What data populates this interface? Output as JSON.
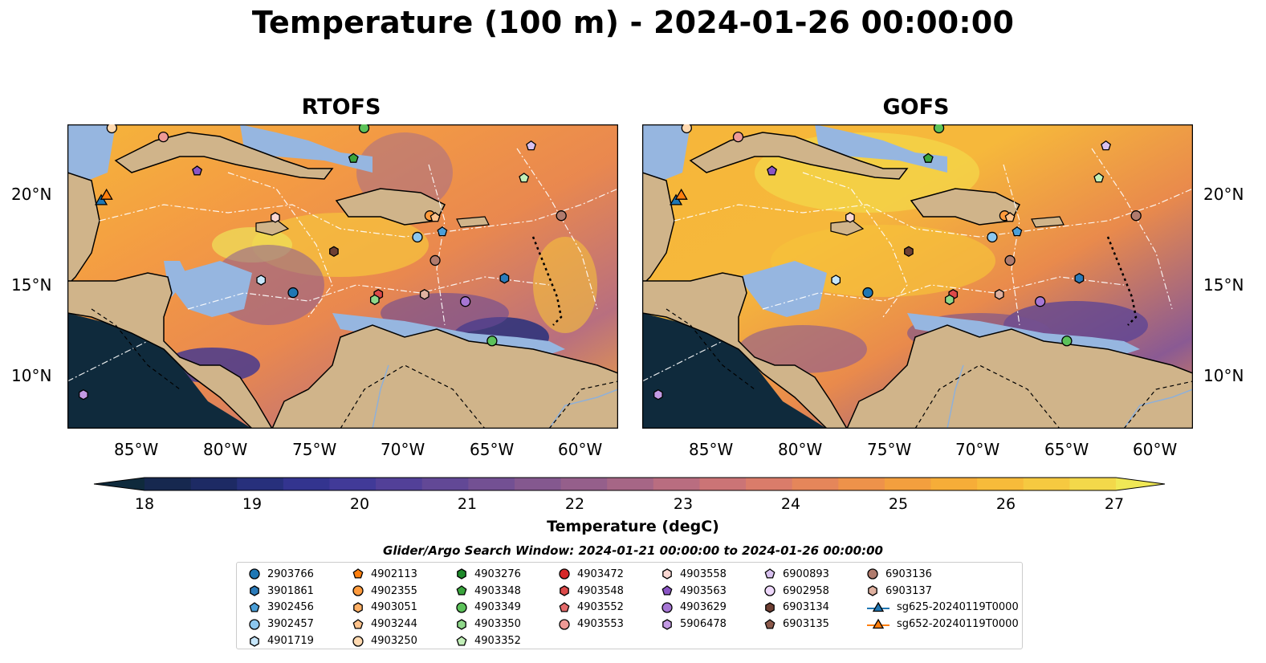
{
  "title": "Temperature (100 m) - 2024-01-26 00:00:00",
  "panels": [
    {
      "title": "RTOFS"
    },
    {
      "title": "GOFS"
    }
  ],
  "axes": {
    "x_ticks": [
      "85°W",
      "80°W",
      "75°W",
      "70°W",
      "65°W",
      "60°W"
    ],
    "y_ticks": [
      "20°N",
      "15°N",
      "10°N"
    ]
  },
  "colorbar": {
    "label": "Temperature (degC)",
    "ticks": [
      "18",
      "19",
      "20",
      "21",
      "22",
      "23",
      "24",
      "25",
      "26",
      "27"
    ],
    "range": [
      18,
      27
    ],
    "extend": "both",
    "colors": [
      "#0f2a3c",
      "#16284f",
      "#1d2a64",
      "#27307c",
      "#33348f",
      "#413a98",
      "#524098",
      "#624896",
      "#735093",
      "#84588f",
      "#955f8b",
      "#a66686",
      "#b96d80",
      "#cb7476",
      "#da7c6a",
      "#e5865a",
      "#ee924a",
      "#f39f3e",
      "#f6ad38",
      "#f7bb3a",
      "#f6c940",
      "#f3d84a",
      "#f0e856"
    ]
  },
  "legend": {
    "title": "Glider/Argo Search Window: 2024-01-21 00:00:00 to 2024-01-26 00:00:00",
    "columns": [
      [
        {
          "label": "2903766",
          "marker": "circle",
          "color": "#1f77b4"
        },
        {
          "label": "3901861",
          "marker": "hexagon",
          "color": "#2b7bba"
        },
        {
          "label": "3902456",
          "marker": "pentagon",
          "color": "#4b9fd8"
        },
        {
          "label": "3902457",
          "marker": "circle",
          "color": "#8cc7ef"
        },
        {
          "label": "4901719",
          "marker": "hexagon",
          "color": "#c6e6fb"
        }
      ],
      [
        {
          "label": "4902113",
          "marker": "pentagon",
          "color": "#ff7f0e"
        },
        {
          "label": "4902355",
          "marker": "circle",
          "color": "#ff9b3d"
        },
        {
          "label": "4903051",
          "marker": "hexagon",
          "color": "#ffb065"
        },
        {
          "label": "4903244",
          "marker": "pentagon",
          "color": "#ffc38c"
        },
        {
          "label": "4903250",
          "marker": "circle",
          "color": "#ffd9b0"
        }
      ],
      [
        {
          "label": "4903276",
          "marker": "hexagon",
          "color": "#1e8a2a"
        },
        {
          "label": "4903348",
          "marker": "pentagon",
          "color": "#3aa53d"
        },
        {
          "label": "4903349",
          "marker": "circle",
          "color": "#5cc25a"
        },
        {
          "label": "4903350",
          "marker": "hexagon",
          "color": "#8fd88a"
        },
        {
          "label": "4903352",
          "marker": "pentagon",
          "color": "#c2efb8"
        }
      ],
      [
        {
          "label": "4903472",
          "marker": "circle",
          "color": "#d62728"
        },
        {
          "label": "4903548",
          "marker": "hexagon",
          "color": "#dd4a4a"
        },
        {
          "label": "4903552",
          "marker": "pentagon",
          "color": "#e46b6b"
        },
        {
          "label": "4903553",
          "marker": "circle",
          "color": "#ee9a96"
        }
      ],
      [
        {
          "label": "4903558",
          "marker": "hexagon",
          "color": "#fbd8d3"
        },
        {
          "label": "4903563",
          "marker": "pentagon",
          "color": "#8a55c4"
        },
        {
          "label": "4903629",
          "marker": "circle",
          "color": "#a676d4"
        },
        {
          "label": "5906478",
          "marker": "hexagon",
          "color": "#c39ae3"
        }
      ],
      [
        {
          "label": "6900893",
          "marker": "pentagon",
          "color": "#d8c1ef"
        },
        {
          "label": "6902958",
          "marker": "circle",
          "color": "#eed8fb"
        },
        {
          "label": "6903134",
          "marker": "hexagon",
          "color": "#6e3f33"
        },
        {
          "label": "6903135",
          "marker": "pentagon",
          "color": "#8c5a4b"
        }
      ],
      [
        {
          "label": "6903136",
          "marker": "circle",
          "color": "#b07b6d"
        },
        {
          "label": "6903137",
          "marker": "hexagon",
          "color": "#dfb1a0"
        },
        {
          "label": "sg625-20240119T0000",
          "marker": "triangle-line",
          "color": "#1f77b4"
        },
        {
          "label": "sg652-20240119T0000",
          "marker": "triangle-line",
          "color": "#ff7f0e"
        }
      ]
    ]
  },
  "map_extent": {
    "lon": [
      -89,
      -58
    ],
    "lat": [
      7,
      24
    ]
  },
  "floats": [
    {
      "id": "4903250",
      "lon": -86.5,
      "lat": 23.8
    },
    {
      "id": "4903553",
      "lon": -83.6,
      "lat": 23.3
    },
    {
      "id": "4903563",
      "lon": -81.7,
      "lat": 21.4
    },
    {
      "id": "4903348",
      "lon": -72.9,
      "lat": 22.1
    },
    {
      "id": "4903349",
      "lon": -72.3,
      "lat": 23.8
    },
    {
      "id": "6900893",
      "lon": -62.9,
      "lat": 22.8
    },
    {
      "id": "4903352",
      "lon": -63.3,
      "lat": 21.0
    },
    {
      "id": "4903558",
      "lon": -77.3,
      "lat": 18.8
    },
    {
      "id": "4902355",
      "lon": -68.6,
      "lat": 18.9
    },
    {
      "id": "4903244",
      "lon": -68.3,
      "lat": 18.8
    },
    {
      "id": "3902456",
      "lon": -67.9,
      "lat": 18.0
    },
    {
      "id": "6903136",
      "lon": -61.2,
      "lat": 18.9
    },
    {
      "id": "3902457",
      "lon": -69.3,
      "lat": 17.7
    },
    {
      "id": "6903134",
      "lon": -74.0,
      "lat": 16.9
    },
    {
      "id": "6903136",
      "lon": -68.3,
      "lat": 16.4
    },
    {
      "id": "4901719",
      "lon": -78.1,
      "lat": 15.3
    },
    {
      "id": "2903766",
      "lon": -76.3,
      "lat": 14.6
    },
    {
      "id": "3901861",
      "lon": -64.4,
      "lat": 15.4
    },
    {
      "id": "4903548",
      "lon": -71.5,
      "lat": 14.5
    },
    {
      "id": "4903350",
      "lon": -71.7,
      "lat": 14.2
    },
    {
      "id": "6903137",
      "lon": -68.9,
      "lat": 14.5
    },
    {
      "id": "4903629",
      "lon": -66.6,
      "lat": 14.1
    },
    {
      "id": "4903349",
      "lon": -65.1,
      "lat": 11.9
    },
    {
      "id": "5906478",
      "lon": -88.1,
      "lat": 8.9
    }
  ],
  "gliders": [
    {
      "id": "sg625-20240119T0000",
      "lon": -87.1,
      "lat": 19.7
    },
    {
      "id": "sg652-20240119T0000",
      "lon": -86.8,
      "lat": 20.0
    }
  ]
}
